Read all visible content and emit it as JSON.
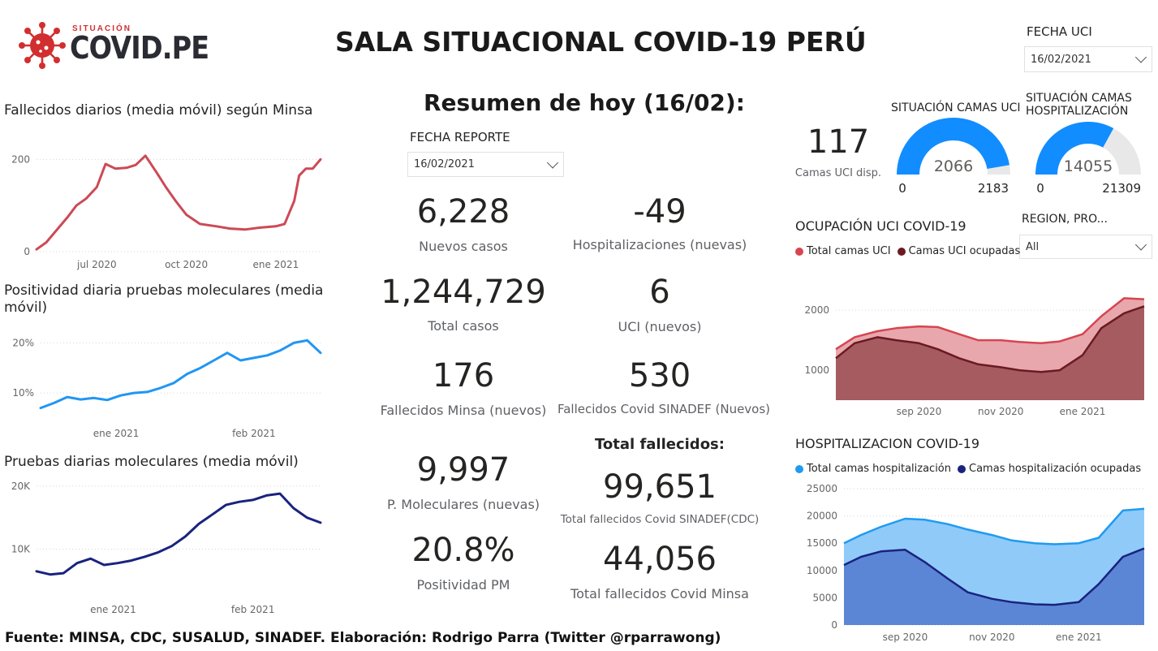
{
  "logo": {
    "super": "SITUACIÓN",
    "main": "COVID.PE"
  },
  "header": {
    "title": "SALA SITUACIONAL COVID-19 PERÚ"
  },
  "fecha_uci": {
    "label": "FECHA UCI",
    "value": "16/02/2021"
  },
  "resumen": {
    "title": "Resumen de hoy (16/02):",
    "fecha_reporte": {
      "label": "FECHA REPORTE",
      "value": "16/02/2021"
    },
    "kpis": {
      "nuevos_casos": {
        "value": "6,228",
        "label": "Nuevos casos"
      },
      "hospitalizaciones": {
        "value": "-49",
        "label": "Hospitalizaciones (nuevas)"
      },
      "total_casos": {
        "value": "1,244,729",
        "label": "Total casos"
      },
      "uci_nuevos": {
        "value": "6",
        "label": "UCI (nuevos)"
      },
      "fallecidos_minsa": {
        "value": "176",
        "label": "Fallecidos Minsa (nuevos)"
      },
      "fallecidos_sinadef": {
        "value": "530",
        "label": "Fallecidos Covid SINADEF (Nuevos)"
      },
      "p_moleculares": {
        "value": "9,997",
        "label": "P. Moleculares (nuevas)"
      },
      "positividad": {
        "value": "20.8%",
        "label": "Positividad PM"
      },
      "total_sinadef": {
        "value": "99,651",
        "label": "Total fallecidos Covid SINADEF(CDC)"
      },
      "total_minsa": {
        "value": "44,056",
        "label": "Total fallecidos Covid Minsa"
      }
    },
    "total_fallecidos_heading": "Total fallecidos:"
  },
  "camas_uci_disp": {
    "value": "117",
    "label": "Camas UCI disp."
  },
  "gauges": {
    "uci": {
      "title": "SITUACIÓN CAMAS UCI",
      "value": 2066,
      "value_label": "2066",
      "min_label": "0",
      "max_label": "2183",
      "max": 2183,
      "color": "#118dff"
    },
    "hosp": {
      "title": "SITUACIÓN CAMAS HOSPITALIZACIÓN",
      "value": 14055,
      "value_label": "14055",
      "min_label": "0",
      "max_label": "21309",
      "max": 21309,
      "color": "#118dff"
    }
  },
  "region_slicer": {
    "label": "REGION, PRO...",
    "value": "All"
  },
  "legends": {
    "uci": [
      {
        "label": "Total camas UCI",
        "color": "#d64550"
      },
      {
        "label": "Camas UCI ocupadas",
        "color": "#6b1a22"
      }
    ],
    "hosp": [
      {
        "label": "Total camas hospitalización",
        "color": "#1e9bf0"
      },
      {
        "label": "Camas hospitalización ocupadas",
        "color": "#1a237e"
      }
    ]
  },
  "footer": "Fuente: MINSA, CDC, SUSALUD, SINADEF. Elaboración: Rodrigo Parra (Twitter @rparrawong)",
  "chart_data": [
    {
      "id": "fallecidos",
      "type": "line",
      "title": "Fallecidos diarios (media móvil) según Minsa",
      "color": "#cc4a55",
      "ylim": [
        0,
        220
      ],
      "xlim": [
        "2020-04-30",
        "2021-02-16"
      ],
      "yticks": [
        {
          "v": 0,
          "label": "0"
        },
        {
          "v": 200,
          "label": "200"
        }
      ],
      "xticks": [
        {
          "v": "2020-07-01",
          "label": "jul 2020"
        },
        {
          "v": "2020-10-01",
          "label": "oct 2020"
        },
        {
          "v": "2021-01-01",
          "label": "ene 2021"
        }
      ],
      "x": [
        "2020-04-30",
        "2020-05-10",
        "2020-05-20",
        "2020-06-01",
        "2020-06-10",
        "2020-06-20",
        "2020-07-01",
        "2020-07-10",
        "2020-07-20",
        "2020-08-01",
        "2020-08-10",
        "2020-08-20",
        "2020-09-01",
        "2020-09-10",
        "2020-09-20",
        "2020-10-01",
        "2020-10-15",
        "2020-11-01",
        "2020-11-15",
        "2020-12-01",
        "2020-12-15",
        "2021-01-01",
        "2021-01-10",
        "2021-01-20",
        "2021-01-25",
        "2021-02-01",
        "2021-02-08",
        "2021-02-16"
      ],
      "y": [
        5,
        20,
        45,
        75,
        100,
        115,
        140,
        190,
        180,
        182,
        188,
        208,
        170,
        140,
        110,
        80,
        60,
        55,
        50,
        48,
        52,
        55,
        60,
        110,
        165,
        180,
        180,
        200
      ]
    },
    {
      "id": "positividad",
      "type": "line",
      "title": "Positividad diaria pruebas moleculares (media móvil)",
      "color": "#2196f3",
      "ylim": [
        5,
        22
      ],
      "xlim": [
        "2020-12-15",
        "2021-02-16"
      ],
      "yticks": [
        {
          "v": 10,
          "label": "10%"
        },
        {
          "v": 20,
          "label": "20%"
        }
      ],
      "xticks": [
        {
          "v": "2021-01-01",
          "label": "ene 2021"
        },
        {
          "v": "2021-02-01",
          "label": "feb 2021"
        }
      ],
      "x": [
        "2020-12-15",
        "2020-12-18",
        "2020-12-21",
        "2020-12-24",
        "2020-12-27",
        "2020-12-30",
        "2021-01-02",
        "2021-01-05",
        "2021-01-08",
        "2021-01-11",
        "2021-01-14",
        "2021-01-17",
        "2021-01-20",
        "2021-01-23",
        "2021-01-26",
        "2021-01-29",
        "2021-02-01",
        "2021-02-04",
        "2021-02-07",
        "2021-02-10",
        "2021-02-13",
        "2021-02-16"
      ],
      "y": [
        7,
        8,
        9.2,
        8.7,
        9,
        8.6,
        9.5,
        10,
        10.2,
        11,
        12,
        13.8,
        15,
        16.5,
        18,
        16.5,
        17,
        17.5,
        18.5,
        20,
        20.5,
        18
      ]
    },
    {
      "id": "pruebas",
      "type": "line",
      "title": "Pruebas diarias moleculares (media móvil)",
      "color": "#1a237e",
      "ylim": [
        3000,
        21000
      ],
      "xlim": [
        "2020-12-15",
        "2021-02-16"
      ],
      "yticks": [
        {
          "v": 10000,
          "label": "10K"
        },
        {
          "v": 20000,
          "label": "20K"
        }
      ],
      "xticks": [
        {
          "v": "2021-01-01",
          "label": "ene 2021"
        },
        {
          "v": "2021-02-01",
          "label": "feb 2021"
        }
      ],
      "x": [
        "2020-12-15",
        "2020-12-18",
        "2020-12-21",
        "2020-12-24",
        "2020-12-27",
        "2020-12-30",
        "2021-01-02",
        "2021-01-05",
        "2021-01-08",
        "2021-01-11",
        "2021-01-14",
        "2021-01-17",
        "2021-01-20",
        "2021-01-23",
        "2021-01-26",
        "2021-01-29",
        "2021-02-01",
        "2021-02-04",
        "2021-02-07",
        "2021-02-10",
        "2021-02-13",
        "2021-02-16"
      ],
      "y": [
        6500,
        6000,
        6200,
        7800,
        8500,
        7500,
        7800,
        8200,
        8800,
        9500,
        10500,
        12000,
        14000,
        15500,
        17000,
        17500,
        17800,
        18500,
        18800,
        16500,
        15000,
        14200
      ]
    },
    {
      "id": "uci",
      "type": "area",
      "title": "OCUPACIÓN UCI COVID-19",
      "ylim": [
        500,
        2300
      ],
      "xlim": [
        "2020-07-01",
        "2021-02-16"
      ],
      "yticks": [
        {
          "v": 1000,
          "label": "1000"
        },
        {
          "v": 2000,
          "label": "2000"
        }
      ],
      "xticks": [
        {
          "v": "2020-09-01",
          "label": "sep 2020"
        },
        {
          "v": "2020-11-01",
          "label": "nov 2020"
        },
        {
          "v": "2021-01-01",
          "label": "ene 2021"
        }
      ],
      "x": [
        "2020-07-01",
        "2020-07-15",
        "2020-08-01",
        "2020-08-15",
        "2020-09-01",
        "2020-09-15",
        "2020-10-01",
        "2020-10-15",
        "2020-11-01",
        "2020-11-15",
        "2020-12-01",
        "2020-12-15",
        "2021-01-01",
        "2021-01-15",
        "2021-02-01",
        "2021-02-16"
      ],
      "series": [
        {
          "name": "Total camas UCI",
          "color": "#d64550",
          "fill": "#e8a7ad",
          "values": [
            1350,
            1550,
            1650,
            1700,
            1730,
            1720,
            1600,
            1500,
            1500,
            1470,
            1450,
            1480,
            1600,
            1900,
            2200,
            2183
          ]
        },
        {
          "name": "Camas UCI ocupadas",
          "color": "#6b1a22",
          "fill": "#a55b60",
          "values": [
            1200,
            1450,
            1550,
            1500,
            1450,
            1350,
            1200,
            1100,
            1050,
            1000,
            970,
            1000,
            1250,
            1700,
            1950,
            2066
          ]
        }
      ]
    },
    {
      "id": "hosp",
      "type": "area",
      "title": "HOSPITALIZACION COVID-19",
      "ylim": [
        0,
        25000
      ],
      "xlim": [
        "2020-07-20",
        "2021-02-16"
      ],
      "yticks": [
        {
          "v": 0,
          "label": "0"
        },
        {
          "v": 5000,
          "label": "5000"
        },
        {
          "v": 10000,
          "label": "10000"
        },
        {
          "v": 15000,
          "label": "15000"
        },
        {
          "v": 20000,
          "label": "20000"
        },
        {
          "v": 25000,
          "label": "25000"
        }
      ],
      "xticks": [
        {
          "v": "2020-09-01",
          "label": "sep 2020"
        },
        {
          "v": "2020-11-01",
          "label": "nov 2020"
        },
        {
          "v": "2021-01-01",
          "label": "ene 2021"
        }
      ],
      "x": [
        "2020-07-20",
        "2020-08-01",
        "2020-08-15",
        "2020-09-01",
        "2020-09-15",
        "2020-10-01",
        "2020-10-15",
        "2020-11-01",
        "2020-11-15",
        "2020-12-01",
        "2020-12-15",
        "2021-01-01",
        "2021-01-15",
        "2021-02-01",
        "2021-02-16"
      ],
      "series": [
        {
          "name": "Total camas hospitalización",
          "color": "#1e9bf0",
          "fill": "#90caf9",
          "values": [
            15000,
            16500,
            18000,
            19500,
            19300,
            18500,
            17500,
            16500,
            15500,
            15000,
            14800,
            15000,
            16000,
            21000,
            21309
          ]
        },
        {
          "name": "Camas hospitalización ocupadas",
          "color": "#1a237e",
          "fill": "#5b86d6",
          "values": [
            11000,
            12500,
            13500,
            13800,
            11500,
            8500,
            6000,
            4800,
            4200,
            3800,
            3700,
            4200,
            7500,
            12500,
            14055
          ]
        }
      ]
    }
  ]
}
